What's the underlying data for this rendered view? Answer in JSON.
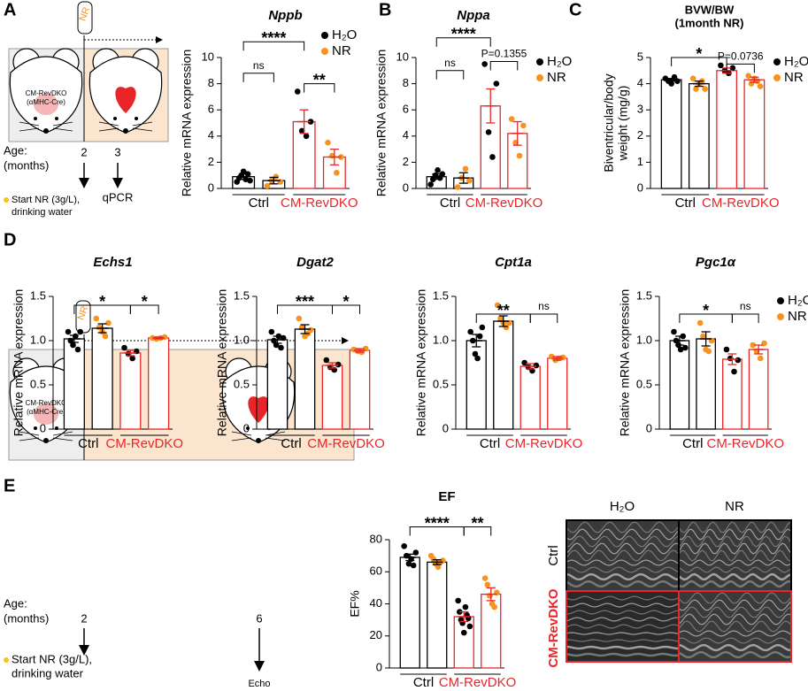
{
  "panels": [
    "A",
    "B",
    "C",
    "D",
    "E"
  ],
  "schematic_a": {
    "tube": "NR",
    "mouse": [
      "CM-RevDKO",
      "(αMHC-Cre)"
    ],
    "age": [
      "Age:",
      "(months)"
    ],
    "times": [
      "2",
      "3"
    ],
    "start": [
      "Start NR (3g/L),",
      "drinking water"
    ],
    "end": "qPCR"
  },
  "schematic_e": {
    "tube": "NR",
    "mouse": [
      "CM-RevDKO",
      "(αMHC-Cre)"
    ],
    "age": [
      "Age:",
      "(months)"
    ],
    "times": [
      "2",
      "6"
    ],
    "start": [
      "Start NR (3g/L),",
      "drinking water"
    ],
    "end": "Echo"
  },
  "echo": {
    "columns": [
      "H₂O",
      "NR"
    ],
    "rows": [
      "Ctrl",
      "CM-RevDKO"
    ]
  },
  "chart_data": [
    {
      "type": "bar",
      "title": "Nppb",
      "ylabel": "Relative mRNA expression",
      "categories": [
        "Ctrl",
        "CM-RevDKO"
      ],
      "category_colors": [
        "#000000",
        "#e8262a"
      ],
      "ylim": [
        0,
        10
      ],
      "yticks": [
        0,
        2,
        4,
        6,
        8,
        10
      ],
      "legend": "upper right",
      "series": [
        {
          "name": "H₂O",
          "color": "#000000",
          "values": [
            0.9,
            5.1
          ],
          "errors": [
            0.2,
            0.9
          ],
          "points": [
            [
              0.5,
              0.8,
              1.0,
              1.3,
              0.7,
              1.1,
              0.6
            ],
            [
              7.4,
              4.4,
              4.0,
              5.1
            ]
          ]
        },
        {
          "name": "NR",
          "color": "#f7931e",
          "values": [
            0.6,
            2.4
          ],
          "errors": [
            0.25,
            0.6
          ],
          "points": [
            [
              0.2,
              0.6,
              0.9,
              0.5
            ],
            [
              3.5,
              2.5,
              1.2,
              2.4
            ]
          ]
        }
      ],
      "annotations": [
        {
          "text": "****",
          "bars": [
            0,
            2
          ],
          "y": 11.2
        },
        {
          "text": "ns",
          "bars": [
            0,
            1
          ],
          "y": 8.8
        },
        {
          "text": "**",
          "bars": [
            2,
            3
          ],
          "y": 8.0
        }
      ]
    },
    {
      "type": "bar",
      "title": "Nppa",
      "ylabel": "Relative mRNA expression",
      "categories": [
        "Ctrl",
        "CM-RevDKO"
      ],
      "category_colors": [
        "#000000",
        "#e8262a"
      ],
      "ylim": [
        0,
        10
      ],
      "yticks": [
        0,
        2,
        4,
        6,
        8,
        10
      ],
      "legend": "right",
      "series": [
        {
          "name": "H₂O",
          "color": "#000000",
          "values": [
            0.9,
            6.3
          ],
          "errors": [
            0.2,
            1.3
          ],
          "points": [
            [
              0.3,
              0.7,
              1.0,
              1.4,
              0.8,
              1.1
            ],
            [
              9.5,
              4.3,
              2.4,
              8.0
            ]
          ]
        },
        {
          "name": "NR",
          "color": "#f7931e",
          "values": [
            0.8,
            4.2
          ],
          "errors": [
            0.4,
            0.9
          ],
          "points": [
            [
              0.1,
              0.8,
              1.5,
              0.6
            ],
            [
              5.3,
              3.5,
              2.5,
              4.8
            ]
          ]
        }
      ],
      "annotations": [
        {
          "text": "****",
          "bars": [
            0,
            2
          ],
          "y": 11.5
        },
        {
          "text": "ns",
          "bars": [
            0,
            1
          ],
          "y": 9.0
        },
        {
          "text": "P=0.1355",
          "bars": [
            2,
            3
          ],
          "y": 9.7
        }
      ]
    },
    {
      "type": "bar",
      "title": [
        "BVW/BW",
        "(1month NR)"
      ],
      "ylabel": [
        "Biventricular/body",
        "weight (mg/g)"
      ],
      "categories": [
        "Ctrl",
        "CM-RevDKO"
      ],
      "category_colors": [
        "#000000",
        "#e8262a"
      ],
      "ylim": [
        0,
        5
      ],
      "yticks": [
        0,
        1,
        2,
        3,
        4,
        5
      ],
      "legend": "right",
      "series": [
        {
          "name": "H₂O",
          "color": "#000000",
          "values": [
            4.15,
            4.5
          ],
          "errors": [
            0.05,
            0.1
          ],
          "points": [
            [
              4.2,
              4.1,
              4.0,
              4.25,
              4.1
            ],
            [
              4.7,
              4.5,
              4.4,
              4.6
            ]
          ]
        },
        {
          "name": "NR",
          "color": "#f7931e",
          "values": [
            4.0,
            4.15
          ],
          "errors": [
            0.1,
            0.1
          ],
          "points": [
            [
              4.2,
              3.8,
              4.0,
              4.1,
              3.8
            ],
            [
              4.3,
              4.0,
              4.2,
              4.1,
              3.9
            ]
          ]
        }
      ],
      "annotations": [
        {
          "text": "*",
          "bars": [
            0,
            2
          ],
          "y": 5.0
        },
        {
          "text": "P=0.0736",
          "bars": [
            2,
            3
          ],
          "y": 4.75
        }
      ]
    },
    {
      "type": "bar",
      "title": "Echs1",
      "ylabel": "Relative mRNA expression",
      "categories": [
        "Ctrl",
        "CM-RevDKO"
      ],
      "category_colors": [
        "#000000",
        "#e8262a"
      ],
      "ylim": [
        0,
        1.5
      ],
      "yticks": [
        0,
        0.5,
        {
          "value": 1,
          "label": "1.0"
        },
        1.5
      ],
      "series": [
        {
          "name": "H₂O",
          "color": "#000000",
          "values": [
            1.02,
            0.86
          ],
          "errors": [
            0.04,
            0.03
          ],
          "points": [
            [
              1.1,
              1.0,
              0.95,
              1.05,
              0.9,
              1.1
            ],
            [
              0.92,
              0.85,
              0.8,
              0.88
            ]
          ]
        },
        {
          "name": "NR",
          "color": "#f7931e",
          "values": [
            1.14,
            1.03
          ],
          "errors": [
            0.05,
            0.01
          ],
          "points": [
            [
              1.25,
              1.15,
              1.1,
              1.05,
              1.2
            ],
            [
              1.03,
              1.02,
              1.03,
              1.04
            ]
          ]
        }
      ],
      "annotations": [
        {
          "text": "*",
          "bars": [
            0,
            2
          ],
          "y": 1.4
        },
        {
          "text": "*",
          "bars": [
            2,
            3
          ],
          "y": 1.4
        }
      ]
    },
    {
      "type": "bar",
      "title": "Dgat2",
      "ylabel": "Relative mRNA expression",
      "categories": [
        "Ctrl",
        "CM-RevDKO"
      ],
      "category_colors": [
        "#000000",
        "#e8262a"
      ],
      "ylim": [
        0,
        1.5
      ],
      "yticks": [
        0,
        0.5,
        {
          "value": 1,
          "label": "1.0"
        },
        1.5
      ],
      "series": [
        {
          "name": "H₂O",
          "color": "#000000",
          "values": [
            1.01,
            0.72
          ],
          "errors": [
            0.04,
            0.03
          ],
          "points": [
            [
              1.1,
              1.0,
              0.95,
              1.05,
              0.92,
              1.03
            ],
            [
              0.78,
              0.7,
              0.67,
              0.73
            ]
          ]
        },
        {
          "name": "NR",
          "color": "#f7931e",
          "values": [
            1.13,
            0.89
          ],
          "errors": [
            0.05,
            0.02
          ],
          "points": [
            [
              1.25,
              1.15,
              1.05,
              1.08,
              1.12
            ],
            [
              0.9,
              0.88,
              0.87,
              0.91
            ]
          ]
        }
      ],
      "annotations": [
        {
          "text": "***",
          "bars": [
            0,
            2
          ],
          "y": 1.4
        },
        {
          "text": "*",
          "bars": [
            2,
            3
          ],
          "y": 1.4
        }
      ]
    },
    {
      "type": "bar",
      "title": "Cpt1a",
      "ylabel": "Relative mRNA expression",
      "categories": [
        "Ctrl",
        "CM-RevDKO"
      ],
      "category_colors": [
        "#000000",
        "#e8262a"
      ],
      "ylim": [
        0,
        1.5
      ],
      "yticks": [
        0,
        0.5,
        {
          "value": 1,
          "label": "1.0"
        },
        1.5
      ],
      "series": [
        {
          "name": "H₂O",
          "color": "#000000",
          "values": [
            1.0,
            0.71
          ],
          "errors": [
            0.07,
            0.03
          ],
          "points": [
            [
              1.1,
              1.0,
              0.85,
              0.8,
              1.05,
              1.15
            ],
            [
              0.75,
              0.7,
              0.66,
              0.72
            ]
          ]
        },
        {
          "name": "NR",
          "color": "#f7931e",
          "values": [
            1.22,
            0.8
          ],
          "errors": [
            0.06,
            0.02
          ],
          "points": [
            [
              1.4,
              1.25,
              1.2,
              1.15,
              1.2
            ],
            [
              0.82,
              0.78,
              0.8,
              0.81
            ]
          ]
        }
      ],
      "annotations": [
        {
          "text": "**",
          "bars": [
            0,
            2
          ],
          "y": 1.3
        },
        {
          "text": "ns",
          "bars": [
            2,
            3
          ],
          "y": 1.3
        }
      ]
    },
    {
      "type": "bar",
      "title": "Pgc1α",
      "ylabel": "Relative mRNA expression",
      "categories": [
        "Ctrl",
        "CM-RevDKO"
      ],
      "category_colors": [
        "#000000",
        "#e8262a"
      ],
      "ylim": [
        0,
        1.5
      ],
      "yticks": [
        0,
        0.5,
        {
          "value": 1,
          "label": "1.0"
        },
        1.5
      ],
      "legend": "right",
      "series": [
        {
          "name": "H₂O",
          "color": "#000000",
          "values": [
            1.0,
            0.79
          ],
          "errors": [
            0.05,
            0.06
          ],
          "points": [
            [
              1.1,
              1.0,
              0.95,
              0.9,
              1.05,
              0.92
            ],
            [
              0.9,
              0.8,
              0.65,
              0.78
            ]
          ]
        },
        {
          "name": "NR",
          "color": "#f7931e",
          "values": [
            1.02,
            0.9
          ],
          "errors": [
            0.08,
            0.05
          ],
          "points": [
            [
              1.2,
              1.05,
              0.9,
              0.88,
              1.0
            ],
            [
              0.95,
              0.88,
              0.8,
              0.97
            ]
          ]
        }
      ],
      "annotations": [
        {
          "text": "*",
          "bars": [
            0,
            2
          ],
          "y": 1.3
        },
        {
          "text": "ns",
          "bars": [
            2,
            3
          ],
          "y": 1.3
        }
      ]
    },
    {
      "type": "bar",
      "title": "EF",
      "ylabel": "EF%",
      "categories": [
        "Ctrl",
        "CM-RevDKO"
      ],
      "category_colors": [
        "#000000",
        "#e8262a"
      ],
      "ylim": [
        0,
        80
      ],
      "yticks": [
        0,
        20,
        40,
        60,
        80
      ],
      "series": [
        {
          "name": "H₂O",
          "color": "#000000",
          "values": [
            69,
            32
          ],
          "errors": [
            2,
            3
          ],
          "points": [
            [
              76,
              70,
              65,
              68,
              64,
              72
            ],
            [
              42,
              35,
              30,
              28,
              22,
              38,
              33,
              31,
              26
            ]
          ]
        },
        {
          "name": "NR",
          "color": "#f7931e",
          "values": [
            66,
            46
          ],
          "errors": [
            1.5,
            4
          ],
          "points": [
            [
              70,
              68,
              65,
              63,
              66,
              67
            ],
            [
              56,
              52,
              45,
              40,
              38,
              47
            ]
          ]
        }
      ],
      "annotations": [
        {
          "text": "****",
          "bars": [
            0,
            2
          ],
          "y": 88
        },
        {
          "text": "**",
          "bars": [
            2,
            3
          ],
          "y": 88
        }
      ]
    }
  ]
}
